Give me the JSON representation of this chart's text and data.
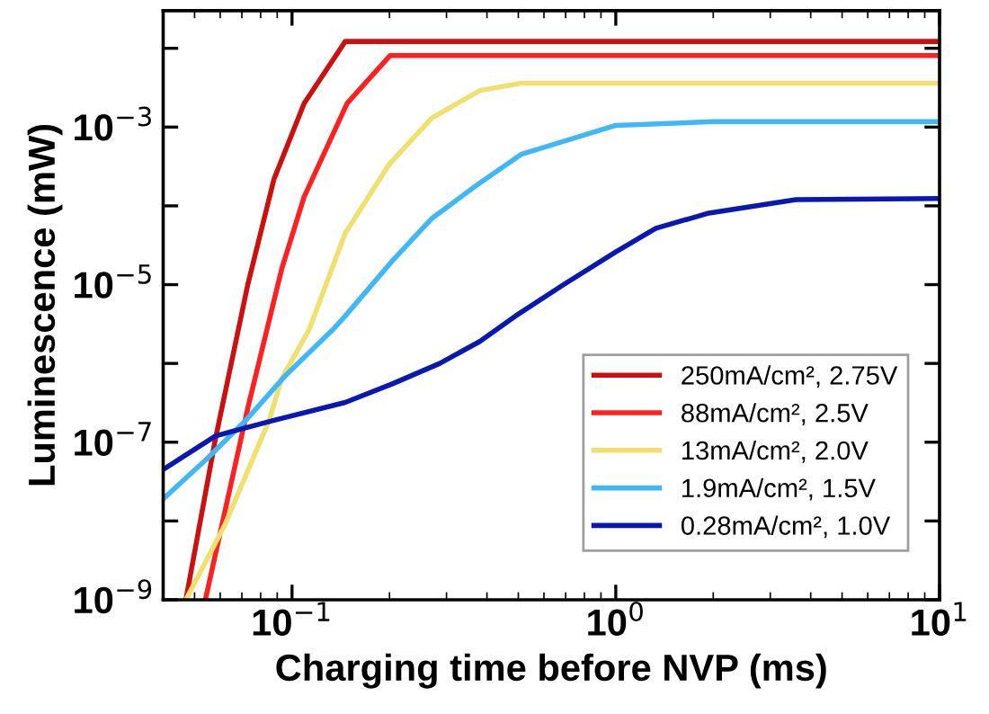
{
  "chart_data": {
    "type": "line",
    "xlabel": "Charging time before NVP (ms)",
    "ylabel": "Luminescence (mW)",
    "log": "xy",
    "xlim": [
      0.04,
      10
    ],
    "ylim": [
      1e-09,
      0.03
    ],
    "xticks": [
      {
        "value": 0.1,
        "label": "10$^{−1}$"
      },
      {
        "value": 1,
        "label": "10$^{0}$"
      },
      {
        "value": 10,
        "label": "10$^{1}$"
      }
    ],
    "yticks": [
      {
        "value": 1e-09,
        "label": "10$^{−9}$"
      },
      {
        "value": 1e-08,
        "label": null
      },
      {
        "value": 1e-07,
        "label": "10$^{−7}$"
      },
      {
        "value": 1e-06,
        "label": null
      },
      {
        "value": 1e-05,
        "label": "10$^{−5}$"
      },
      {
        "value": 0.0001,
        "label": null
      },
      {
        "value": 0.001,
        "label": "10$^{−3}$"
      },
      {
        "value": 0.01,
        "label": null
      }
    ],
    "grid": false,
    "legend": "lower right",
    "marker": "none",
    "line_style": "solid",
    "series": [
      {
        "name": "250mA/cm², 2.75V",
        "color": "#cc1010",
        "x": [
          0.047,
          0.058,
          0.073,
          0.088,
          0.109,
          0.146,
          10
        ],
        "values": [
          1e-09,
          1.1e-07,
          1e-05,
          0.00022,
          0.002,
          0.0122,
          0.0122
        ]
      },
      {
        "name": "88mA/cm², 2.5V",
        "color": "#ff2020",
        "x": [
          0.054,
          0.073,
          0.093,
          0.109,
          0.148,
          0.201,
          10
        ],
        "values": [
          1e-09,
          2.7e-07,
          1.6e-05,
          0.00013,
          0.002,
          0.0081,
          0.0081
        ]
      },
      {
        "name": "13mA/cm², 2.0V",
        "color": "#f0e070",
        "x": [
          0.047,
          0.062,
          0.085,
          0.093,
          0.113,
          0.146,
          0.2,
          0.27,
          0.38,
          0.51,
          10
        ],
        "values": [
          1e-09,
          8.9e-09,
          1.9e-07,
          6.5e-07,
          2.7e-06,
          4.5e-05,
          0.00034,
          0.0013,
          0.0029,
          0.0036,
          0.0036
        ]
      },
      {
        "name": "1.9mA/cm², 1.5V",
        "color": "#40b8f8",
        "x": [
          0.04,
          0.054,
          0.072,
          0.096,
          0.135,
          0.146,
          0.204,
          0.27,
          0.37,
          0.51,
          1.0,
          2.0,
          10
        ],
        "values": [
          1.9e-08,
          5.9e-08,
          1.9e-07,
          7.2e-07,
          2.8e-06,
          4e-06,
          2e-05,
          6.9e-05,
          0.00018,
          0.00045,
          0.00105,
          0.00117,
          0.00117
        ]
      },
      {
        "name": "0.28mA/cm², 1.0V",
        "color": "#0818b0",
        "x": [
          0.04,
          0.058,
          0.088,
          0.146,
          0.204,
          0.286,
          0.38,
          0.49,
          0.69,
          1.0,
          1.33,
          1.94,
          3.6,
          10
        ],
        "values": [
          4.5e-08,
          1.2e-07,
          1.9e-07,
          3.2e-07,
          5.5e-07,
          1e-06,
          1.9e-06,
          4e-06,
          1e-05,
          2.6e-05,
          5.2e-05,
          8.1e-05,
          0.00012,
          0.000124
        ]
      }
    ]
  }
}
